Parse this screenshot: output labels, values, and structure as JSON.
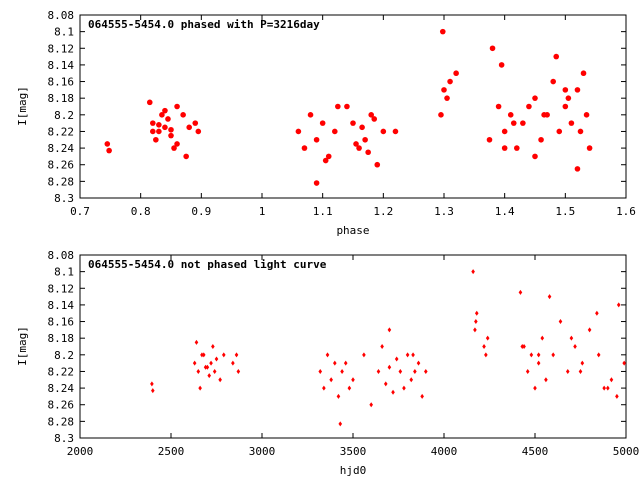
{
  "chart_data": [
    {
      "type": "scatter",
      "title": "064555-5454.0 phased with P=3216day",
      "xlabel": "phase",
      "ylabel": "I[mag]",
      "xlim": [
        0.7,
        1.6
      ],
      "ylim": [
        8.08,
        8.3
      ],
      "y_inverted": true,
      "x_ticks": [
        "0.7",
        "0.8",
        "0.9",
        "1",
        "1.1",
        "1.2",
        "1.3",
        "1.4",
        "1.5",
        "1.6"
      ],
      "y_ticks": [
        "8.08",
        "8.1",
        "8.12",
        "8.14",
        "8.16",
        "8.18",
        "8.2",
        "8.22",
        "8.24",
        "8.26",
        "8.28",
        "8.3"
      ],
      "marker": "filled-circle",
      "color": "#ff0000",
      "grid": false,
      "series": [
        {
          "x": [
            0.745,
            0.748,
            0.82,
            0.83,
            0.835,
            0.84,
            0.85,
            0.86,
            0.815,
            0.825,
            0.845,
            0.855,
            0.87,
            0.88,
            0.89,
            0.895,
            0.82,
            0.84,
            0.86,
            0.83,
            0.85,
            0.875,
            1.06,
            1.07,
            1.08,
            1.09,
            1.1,
            1.11,
            1.12,
            1.15,
            1.16,
            1.17,
            1.18,
            1.19,
            1.2,
            1.14,
            1.155,
            1.165,
            1.175,
            1.185,
            1.09,
            1.105,
            1.125,
            1.22,
            1.298,
            1.3,
            1.31,
            1.32,
            1.295,
            1.305,
            1.38,
            1.39,
            1.4,
            1.41,
            1.42,
            1.43,
            1.45,
            1.46,
            1.47,
            1.48,
            1.49,
            1.5,
            1.51,
            1.52,
            1.53,
            1.54,
            1.375,
            1.395,
            1.415,
            1.44,
            1.465,
            1.485,
            1.505,
            1.525,
            1.535,
            1.4,
            1.45,
            1.5,
            1.52
          ],
          "y": [
            8.235,
            8.243,
            8.21,
            8.22,
            8.2,
            8.215,
            8.225,
            8.19,
            8.185,
            8.23,
            8.205,
            8.24,
            8.2,
            8.215,
            8.21,
            8.22,
            8.22,
            8.195,
            8.235,
            8.212,
            8.218,
            8.25,
            8.22,
            8.24,
            8.2,
            8.23,
            8.21,
            8.25,
            8.22,
            8.21,
            8.24,
            8.23,
            8.2,
            8.26,
            8.22,
            8.19,
            8.235,
            8.215,
            8.245,
            8.205,
            8.282,
            8.255,
            8.19,
            8.22,
            8.1,
            8.17,
            8.16,
            8.15,
            8.2,
            8.18,
            8.12,
            8.19,
            8.22,
            8.2,
            8.24,
            8.21,
            8.18,
            8.23,
            8.2,
            8.16,
            8.22,
            8.19,
            8.21,
            8.17,
            8.15,
            8.24,
            8.23,
            8.14,
            8.21,
            8.19,
            8.2,
            8.13,
            8.18,
            8.22,
            8.2,
            8.24,
            8.25,
            8.17,
            8.265
          ]
        }
      ]
    },
    {
      "type": "scatter",
      "title": "064555-5454.0 not phased light curve",
      "xlabel": "hjd0",
      "ylabel": "I[mag]",
      "xlim": [
        2000,
        5000
      ],
      "ylim": [
        8.08,
        8.3
      ],
      "y_inverted": true,
      "x_ticks": [
        "2000",
        "2500",
        "3000",
        "3500",
        "4000",
        "4500",
        "5000"
      ],
      "y_ticks": [
        "8.08",
        "8.1",
        "8.12",
        "8.14",
        "8.16",
        "8.18",
        "8.2",
        "8.22",
        "8.24",
        "8.26",
        "8.28",
        "8.3"
      ],
      "marker": "small-diamond",
      "color": "#ff0000",
      "grid": false,
      "series": [
        {
          "x": [
            2395,
            2400,
            2630,
            2650,
            2670,
            2690,
            2710,
            2730,
            2750,
            2770,
            2640,
            2660,
            2680,
            2700,
            2720,
            2740,
            2790,
            2840,
            2860,
            2870,
            3320,
            3340,
            3360,
            3380,
            3400,
            3420,
            3440,
            3460,
            3480,
            3500,
            3560,
            3600,
            3640,
            3660,
            3680,
            3700,
            3720,
            3740,
            3760,
            3780,
            3800,
            3820,
            3840,
            3860,
            3880,
            3900,
            3430,
            3700,
            3830,
            4160,
            4170,
            4175,
            4180,
            4220,
            4230,
            4240,
            4420,
            4440,
            4460,
            4480,
            4500,
            4520,
            4540,
            4560,
            4600,
            4640,
            4680,
            4720,
            4760,
            4800,
            4840,
            4880,
            4920,
            4960,
            4990,
            4430,
            4520,
            4580,
            4700,
            4750,
            4850,
            4900,
            4950
          ],
          "y": [
            8.235,
            8.243,
            8.21,
            8.22,
            8.2,
            8.215,
            8.225,
            8.19,
            8.205,
            8.23,
            8.185,
            8.24,
            8.2,
            8.215,
            8.21,
            8.22,
            8.2,
            8.21,
            8.2,
            8.22,
            8.22,
            8.24,
            8.2,
            8.23,
            8.21,
            8.25,
            8.22,
            8.21,
            8.24,
            8.23,
            8.2,
            8.26,
            8.22,
            8.19,
            8.235,
            8.215,
            8.245,
            8.205,
            8.22,
            8.24,
            8.2,
            8.23,
            8.22,
            8.21,
            8.25,
            8.22,
            8.283,
            8.17,
            8.2,
            8.1,
            8.17,
            8.16,
            8.15,
            8.19,
            8.2,
            8.18,
            8.125,
            8.19,
            8.22,
            8.2,
            8.24,
            8.21,
            8.18,
            8.23,
            8.2,
            8.16,
            8.22,
            8.19,
            8.21,
            8.17,
            8.15,
            8.24,
            8.23,
            8.14,
            8.21,
            8.19,
            8.2,
            8.13,
            8.18,
            8.22,
            8.2,
            8.24,
            8.25
          ]
        }
      ]
    }
  ]
}
